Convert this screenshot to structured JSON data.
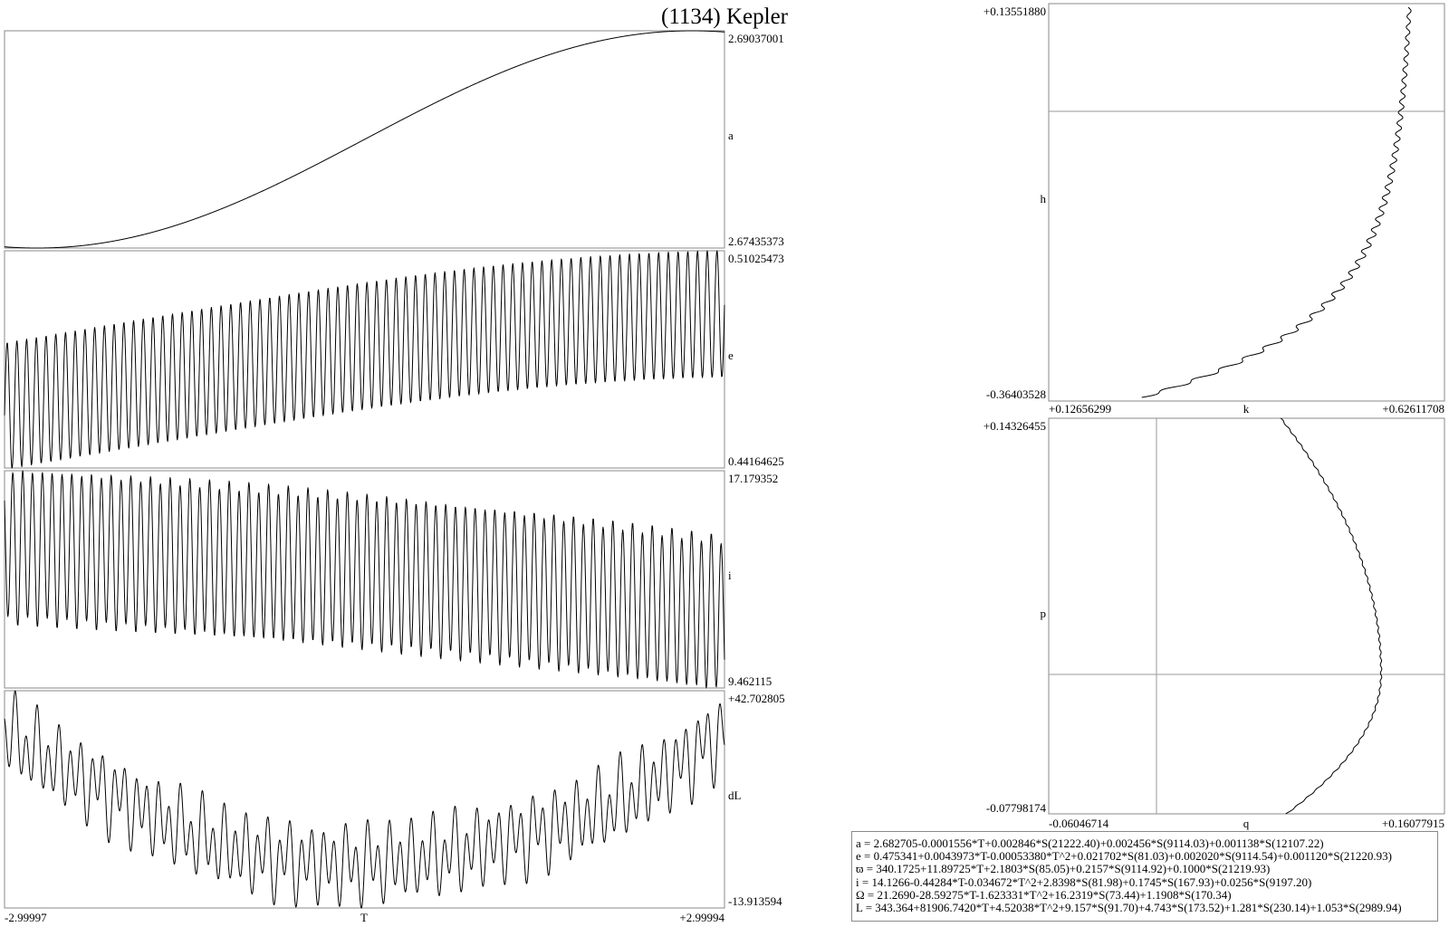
{
  "title": "(1134) Kepler",
  "time_axis": {
    "label": "T",
    "min_label": "-2.99997",
    "max_label": "+2.99994",
    "range": [
      -2.99997,
      2.99994
    ]
  },
  "panels": {
    "a": {
      "label": "a",
      "max_label": "2.69037001",
      "min_label": "2.67435373"
    },
    "e": {
      "label": "e",
      "max_label": "0.51025473",
      "min_label": "0.44164625"
    },
    "i": {
      "label": "i",
      "max_label": "17.179352",
      "min_label": "9.462115"
    },
    "dL": {
      "label": "dL",
      "max_label": "+42.702805",
      "min_label": "-13.913594"
    },
    "kh": {
      "y_label": "h",
      "x_label": "k",
      "y_max_label": "+0.13551880",
      "y_min_label": "-0.36403528",
      "x_min_label": "+0.12656299",
      "x_max_label": "+0.62611708"
    },
    "qp": {
      "y_label": "p",
      "x_label": "q",
      "y_max_label": "+0.14326455",
      "y_min_label": "-0.07798174",
      "x_min_label": "-0.06046714",
      "x_max_label": "+0.16077915"
    }
  },
  "formulas": [
    "a = 2.682705-0.0001556*T+0.002846*S(21222.40)+0.002456*S(9114.03)+0.001138*S(12107.22)",
    "e = 0.475341+0.0043973*T-0.00053380*T^2+0.021702*S(81.03)+0.002020*S(9114.54)+0.001120*S(21220.93)",
    "ϖ = 340.1725+11.89725*T+2.1803*S(85.05)+0.2157*S(9114.92)+0.1000*S(21219.93)",
    "i = 14.1266-0.44284*T-0.034672*T^2+2.8398*S(81.98)+0.1745*S(167.93)+0.0256*S(9197.20)",
    "Ω = 21.2690-28.59275*T-1.623331*T^2+16.2319*S(73.44)+1.1908*S(170.34)",
    "L = 343.364+81906.7420*T+4.52038*T^2+9.157*S(91.70)+4.743*S(173.52)+1.281*S(230.14)+1.053*S(2989.94)"
  ],
  "chart_data": [
    {
      "type": "line",
      "name": "a",
      "x_label": "T",
      "y_label": "a",
      "xlim": [
        -2.99997,
        2.99994
      ],
      "ylim": [
        2.67435373,
        2.69037001
      ],
      "formula": {
        "const": 2.682705,
        "t": -0.0001556,
        "t2": 0,
        "terms": [
          [
            0.002846,
            21222.4
          ],
          [
            0.002456,
            9114.03
          ],
          [
            0.001138,
            12107.22
          ]
        ]
      }
    },
    {
      "type": "line",
      "name": "e",
      "x_label": "T",
      "y_label": "e",
      "xlim": [
        -2.99997,
        2.99994
      ],
      "ylim": [
        0.44164625,
        0.51025473
      ],
      "formula": {
        "const": 0.475341,
        "t": 0.0043973,
        "t2": -0.0005338,
        "terms": [
          [
            0.021702,
            81.03
          ],
          [
            0.00202,
            9114.54
          ],
          [
            0.00112,
            21220.93
          ]
        ]
      }
    },
    {
      "type": "line",
      "name": "i",
      "x_label": "T",
      "y_label": "i",
      "xlim": [
        -2.99997,
        2.99994
      ],
      "ylim": [
        9.462115,
        17.179352
      ],
      "formula": {
        "const": 14.1266,
        "t": -0.44284,
        "t2": -0.034672,
        "terms": [
          [
            2.8398,
            81.98
          ],
          [
            0.1745,
            167.93
          ],
          [
            0.0256,
            9197.2
          ]
        ]
      }
    },
    {
      "type": "line",
      "name": "dL",
      "x_label": "T",
      "y_label": "dL",
      "xlim": [
        -2.99997,
        2.99994
      ],
      "ylim": [
        -13.913594,
        42.702805
      ],
      "formula": {
        "const": 0,
        "t": 0,
        "t2": 4.52038,
        "terms": [
          [
            9.157,
            91.7
          ],
          [
            4.743,
            173.52
          ],
          [
            1.281,
            230.14
          ],
          [
            1.053,
            2989.94
          ]
        ]
      }
    },
    {
      "type": "scatter",
      "name": "k-h",
      "x_label": "k",
      "y_label": "h",
      "xlim": [
        0.12656299,
        0.62611708
      ],
      "ylim": [
        -0.36403528,
        0.1355188
      ],
      "grid": "zero lines"
    },
    {
      "type": "scatter",
      "name": "q-p",
      "x_label": "q",
      "y_label": "p",
      "xlim": [
        -0.06046714,
        0.16077915
      ],
      "ylim": [
        -0.07798174,
        0.14326455
      ],
      "grid": "zero lines"
    }
  ]
}
